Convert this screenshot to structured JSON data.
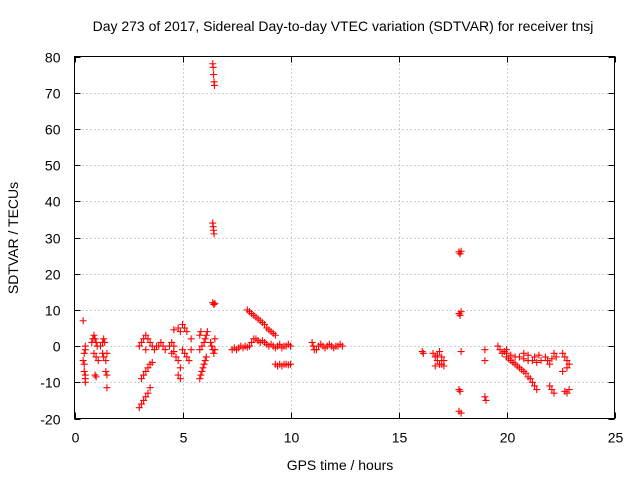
{
  "chart_data": {
    "type": "scatter",
    "title": "Day 273 of 2017, Sidereal Day-to-day VTEC variation (SDTVAR) for receiver tnsj",
    "xlabel": "GPS time / hours",
    "ylabel": "SDTVAR / TECUs",
    "xlim": [
      0,
      25
    ],
    "ylim": [
      -20,
      80
    ],
    "xticks": [
      0,
      5,
      10,
      15,
      20,
      25
    ],
    "yticks": [
      -20,
      -10,
      0,
      10,
      20,
      30,
      40,
      50,
      60,
      70,
      80
    ],
    "grid": true,
    "marker": "+",
    "color": "#ff0000",
    "series": [
      {
        "name": "SDTVAR",
        "points": [
          [
            0.4,
            7
          ],
          [
            0.4,
            -4
          ],
          [
            0.45,
            -5
          ],
          [
            0.45,
            -7
          ],
          [
            0.5,
            -8
          ],
          [
            0.5,
            -9
          ],
          [
            0.5,
            -10
          ],
          [
            0.45,
            -2
          ],
          [
            0.5,
            -1
          ],
          [
            0.5,
            0
          ],
          [
            0.8,
            1
          ],
          [
            0.85,
            2
          ],
          [
            0.9,
            3
          ],
          [
            0.95,
            2
          ],
          [
            1.0,
            1
          ],
          [
            1.05,
            0
          ],
          [
            0.9,
            -2
          ],
          [
            1.0,
            -3
          ],
          [
            1.1,
            -4
          ],
          [
            0.95,
            -8
          ],
          [
            1.0,
            -8.5
          ],
          [
            1.2,
            0
          ],
          [
            1.3,
            1
          ],
          [
            1.35,
            2
          ],
          [
            1.4,
            1
          ],
          [
            1.3,
            -2
          ],
          [
            1.35,
            -3
          ],
          [
            1.45,
            -4
          ],
          [
            1.5,
            -2
          ],
          [
            1.45,
            -7
          ],
          [
            1.5,
            -8
          ],
          [
            1.5,
            -11.5
          ],
          [
            3.0,
            -17
          ],
          [
            3.1,
            -16
          ],
          [
            3.2,
            -15
          ],
          [
            3.3,
            -14
          ],
          [
            3.4,
            -13
          ],
          [
            3.5,
            -11.5
          ],
          [
            3.1,
            -9
          ],
          [
            3.2,
            -8
          ],
          [
            3.3,
            -7
          ],
          [
            3.4,
            -6
          ],
          [
            3.5,
            -5
          ],
          [
            3.6,
            -4.5
          ],
          [
            3.0,
            0
          ],
          [
            3.1,
            1
          ],
          [
            3.2,
            2
          ],
          [
            3.3,
            3
          ],
          [
            3.4,
            2
          ],
          [
            3.5,
            1
          ],
          [
            3.6,
            0
          ],
          [
            3.3,
            -1
          ],
          [
            3.7,
            -1
          ],
          [
            3.8,
            0
          ],
          [
            3.9,
            0
          ],
          [
            4.0,
            1
          ],
          [
            4.1,
            0
          ],
          [
            4.2,
            -1
          ],
          [
            4.4,
            0
          ],
          [
            4.5,
            1
          ],
          [
            4.6,
            0
          ],
          [
            4.5,
            -2
          ],
          [
            4.6,
            -1.5
          ],
          [
            4.6,
            4.5
          ],
          [
            4.8,
            5
          ],
          [
            4.9,
            4
          ],
          [
            5.0,
            6
          ],
          [
            5.1,
            5
          ],
          [
            5.2,
            4
          ],
          [
            4.7,
            -3
          ],
          [
            4.8,
            -4
          ],
          [
            4.9,
            -6
          ],
          [
            4.8,
            -8
          ],
          [
            4.9,
            -9
          ],
          [
            5.0,
            -1
          ],
          [
            5.1,
            -2
          ],
          [
            5.2,
            -3
          ],
          [
            5.3,
            -4
          ],
          [
            5.4,
            -1
          ],
          [
            5.4,
            2
          ],
          [
            5.8,
            -9
          ],
          [
            5.85,
            -8
          ],
          [
            5.9,
            -7
          ],
          [
            5.95,
            -6
          ],
          [
            6.0,
            -5
          ],
          [
            6.05,
            -4
          ],
          [
            6.1,
            -3
          ],
          [
            5.8,
            -1
          ],
          [
            5.9,
            0
          ],
          [
            6.0,
            1
          ],
          [
            6.05,
            2
          ],
          [
            6.1,
            3
          ],
          [
            6.15,
            4
          ],
          [
            5.85,
            4
          ],
          [
            5.8,
            3
          ],
          [
            6.3,
            1
          ],
          [
            6.35,
            0
          ],
          [
            6.4,
            -1
          ],
          [
            6.45,
            -2
          ],
          [
            6.5,
            -1
          ],
          [
            6.5,
            2
          ],
          [
            6.4,
            12
          ],
          [
            6.45,
            11.5
          ],
          [
            6.5,
            11.8
          ],
          [
            6.4,
            34
          ],
          [
            6.42,
            33
          ],
          [
            6.44,
            32
          ],
          [
            6.46,
            31
          ],
          [
            6.4,
            78
          ],
          [
            6.42,
            77
          ],
          [
            6.44,
            75
          ],
          [
            6.46,
            73
          ],
          [
            6.48,
            72
          ],
          [
            7.3,
            -1
          ],
          [
            7.4,
            -0.5
          ],
          [
            7.5,
            -1
          ],
          [
            7.6,
            -0.5
          ],
          [
            7.7,
            0
          ],
          [
            7.8,
            -0.5
          ],
          [
            7.9,
            0
          ],
          [
            8.0,
            -0.3
          ],
          [
            8.1,
            0
          ],
          [
            8.2,
            1
          ],
          [
            8.3,
            2
          ],
          [
            8.4,
            2
          ],
          [
            8.5,
            1.5
          ],
          [
            8.6,
            1
          ],
          [
            8.7,
            1.5
          ],
          [
            8.8,
            1
          ],
          [
            8.9,
            0.5
          ],
          [
            9.0,
            0
          ],
          [
            9.1,
            0.5
          ],
          [
            9.2,
            0
          ],
          [
            9.3,
            -0.5
          ],
          [
            9.4,
            0
          ],
          [
            9.5,
            0.5
          ],
          [
            9.6,
            -0.5
          ],
          [
            9.7,
            0
          ],
          [
            9.8,
            0
          ],
          [
            9.9,
            0.5
          ],
          [
            10.0,
            0
          ],
          [
            8.0,
            10
          ],
          [
            8.1,
            9.5
          ],
          [
            8.2,
            9
          ],
          [
            8.3,
            8.5
          ],
          [
            8.4,
            8
          ],
          [
            8.5,
            7.5
          ],
          [
            8.6,
            7
          ],
          [
            8.7,
            6.5
          ],
          [
            8.8,
            6
          ],
          [
            8.9,
            5
          ],
          [
            9.0,
            4.5
          ],
          [
            9.1,
            4
          ],
          [
            9.2,
            3.5
          ],
          [
            9.3,
            3
          ],
          [
            9.3,
            -5
          ],
          [
            9.4,
            -5.5
          ],
          [
            9.5,
            -5
          ],
          [
            9.6,
            -5.5
          ],
          [
            9.7,
            -5
          ],
          [
            9.8,
            -5
          ],
          [
            9.9,
            -5.2
          ],
          [
            10.0,
            -5
          ],
          [
            11.0,
            1
          ],
          [
            11.05,
            0
          ],
          [
            11.1,
            -1
          ],
          [
            11.2,
            -1
          ],
          [
            11.3,
            0
          ],
          [
            11.4,
            0.5
          ],
          [
            11.5,
            0
          ],
          [
            11.6,
            -0.5
          ],
          [
            11.7,
            0
          ],
          [
            11.8,
            0.5
          ],
          [
            11.9,
            0
          ],
          [
            12.0,
            -0.5
          ],
          [
            12.1,
            0
          ],
          [
            12.2,
            0
          ],
          [
            12.3,
            0.5
          ],
          [
            12.4,
            0
          ],
          [
            16.1,
            -1.5
          ],
          [
            16.15,
            -2
          ],
          [
            16.6,
            -2
          ],
          [
            16.7,
            -3
          ],
          [
            16.8,
            -4
          ],
          [
            16.9,
            -5
          ],
          [
            17.0,
            -5
          ],
          [
            16.7,
            -5.5
          ],
          [
            16.8,
            -2.5
          ],
          [
            17.0,
            -3
          ],
          [
            17.1,
            -4
          ],
          [
            17.1,
            -5.5
          ],
          [
            16.9,
            -1.5
          ],
          [
            17.8,
            26
          ],
          [
            17.85,
            25.5
          ],
          [
            17.9,
            26.2
          ],
          [
            17.8,
            9
          ],
          [
            17.85,
            8.5
          ],
          [
            17.9,
            9.5
          ],
          [
            17.9,
            -1.5
          ],
          [
            17.8,
            -12
          ],
          [
            17.85,
            -12.5
          ],
          [
            17.8,
            -18
          ],
          [
            17.9,
            -18.5
          ],
          [
            19.0,
            -1
          ],
          [
            19.0,
            -4
          ],
          [
            19.0,
            -14
          ],
          [
            19.05,
            -15
          ],
          [
            19.6,
            0
          ],
          [
            19.7,
            -1
          ],
          [
            19.8,
            -2
          ],
          [
            19.9,
            -1.5
          ],
          [
            20.0,
            -1
          ],
          [
            20.0,
            -2
          ],
          [
            20.2,
            -2.5
          ],
          [
            20.4,
            -3
          ],
          [
            20.6,
            -3
          ],
          [
            20.8,
            -3.5
          ],
          [
            21.0,
            -4
          ],
          [
            21.2,
            -4
          ],
          [
            21.4,
            -4.5
          ],
          [
            21.6,
            -4
          ],
          [
            20.0,
            -3
          ],
          [
            20.1,
            -3.5
          ],
          [
            20.2,
            -4
          ],
          [
            20.3,
            -4.5
          ],
          [
            20.4,
            -5
          ],
          [
            20.5,
            -5.5
          ],
          [
            20.6,
            -6
          ],
          [
            20.7,
            -6.5
          ],
          [
            20.8,
            -7
          ],
          [
            20.9,
            -7.5
          ],
          [
            21.0,
            -8.5
          ],
          [
            21.1,
            -9
          ],
          [
            21.2,
            -10
          ],
          [
            21.3,
            -11
          ],
          [
            21.4,
            -12
          ],
          [
            20.8,
            -2
          ],
          [
            21.0,
            -2.5
          ],
          [
            21.3,
            -3
          ],
          [
            21.5,
            -2.5
          ],
          [
            21.8,
            -3
          ],
          [
            21.9,
            -4
          ],
          [
            22.0,
            -5
          ],
          [
            22.1,
            -3.5
          ],
          [
            22.2,
            -2
          ],
          [
            22.3,
            -3
          ],
          [
            22.0,
            -11
          ],
          [
            22.1,
            -12
          ],
          [
            22.2,
            -13
          ],
          [
            22.6,
            -2
          ],
          [
            22.7,
            -3
          ],
          [
            22.8,
            -4
          ],
          [
            22.9,
            -5
          ],
          [
            22.8,
            -6
          ],
          [
            22.6,
            -7
          ],
          [
            22.7,
            -12.5
          ],
          [
            22.8,
            -13
          ],
          [
            22.9,
            -12
          ]
        ]
      }
    ]
  }
}
